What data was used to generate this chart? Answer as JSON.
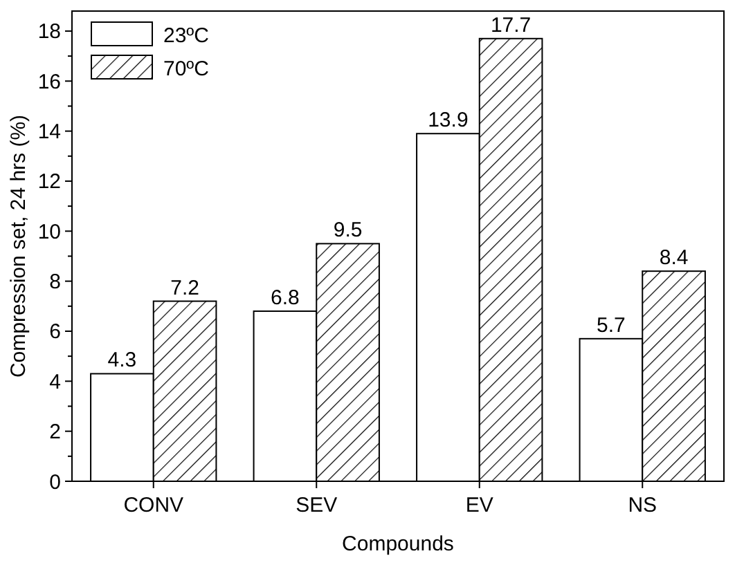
{
  "chart_data": {
    "type": "bar",
    "xlabel": "Compounds",
    "ylabel": "Compression set, 24 hrs (%)",
    "categories": [
      "CONV",
      "SEV",
      "EV",
      "NS"
    ],
    "series": [
      {
        "name": "23ºC",
        "color": "#ffffff",
        "values": [
          4.3,
          6.8,
          13.9,
          5.7
        ]
      },
      {
        "name": "70ºC",
        "color": "#000000",
        "values": [
          7.2,
          9.5,
          17.7,
          8.4
        ]
      }
    ],
    "ylim": [
      0,
      18.8
    ],
    "yticks": [
      0,
      2,
      4,
      6,
      8,
      10,
      12,
      14,
      16,
      18
    ],
    "data_labels": true,
    "legend": "top left"
  }
}
